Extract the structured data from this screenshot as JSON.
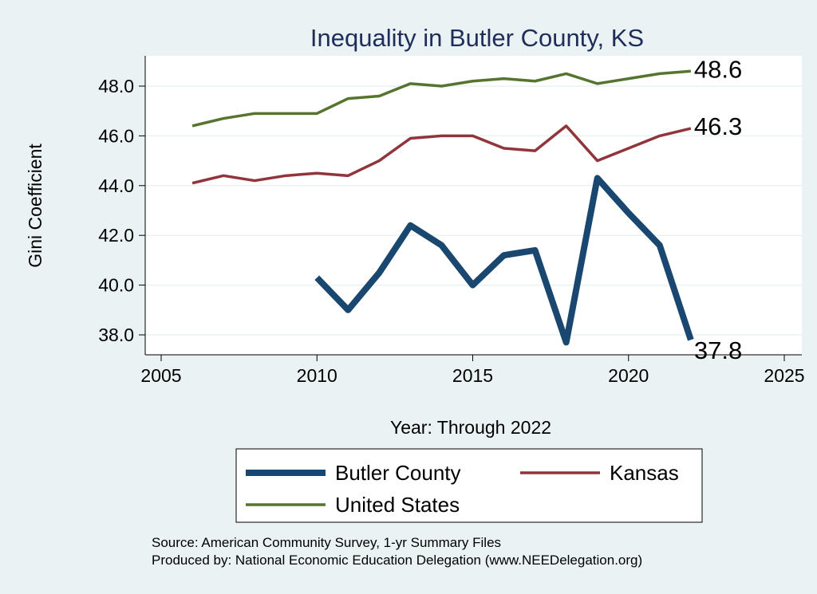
{
  "chart_data": {
    "type": "line",
    "title": "Inequality in Butler County, KS",
    "xlabel": "Year: Through 2022",
    "ylabel": "Gini Coefficient",
    "xlim": [
      2005,
      2025
    ],
    "ylim": [
      37.8,
      48.9
    ],
    "xticks": [
      2005,
      2010,
      2015,
      2020,
      2025
    ],
    "yticks": [
      "38.0",
      "40.0",
      "42.0",
      "44.0",
      "46.0",
      "48.0"
    ],
    "grid": true,
    "legend_position": "bottom",
    "series": [
      {
        "name": "Butler County",
        "color": "#1a476f",
        "x": [
          2010,
          2011,
          2012,
          2013,
          2014,
          2015,
          2016,
          2017,
          2018,
          2019,
          2020,
          2021,
          2022
        ],
        "values": [
          40.3,
          39.0,
          40.5,
          42.4,
          41.6,
          40.0,
          41.2,
          41.4,
          37.7,
          44.3,
          42.9,
          41.6,
          37.8
        ],
        "end_label": "37.8"
      },
      {
        "name": "Kansas",
        "color": "#90353b",
        "x": [
          2006,
          2007,
          2008,
          2009,
          2010,
          2011,
          2012,
          2013,
          2014,
          2015,
          2016,
          2017,
          2018,
          2019,
          2020,
          2021,
          2022
        ],
        "values": [
          44.1,
          44.4,
          44.2,
          44.4,
          44.5,
          44.4,
          45.0,
          45.9,
          46.0,
          46.0,
          45.5,
          45.4,
          46.4,
          45.0,
          45.5,
          46.0,
          46.3
        ],
        "end_label": "46.3"
      },
      {
        "name": "United States",
        "color": "#55752f",
        "x": [
          2006,
          2007,
          2008,
          2009,
          2010,
          2011,
          2012,
          2013,
          2014,
          2015,
          2016,
          2017,
          2018,
          2019,
          2020,
          2021,
          2022
        ],
        "values": [
          46.4,
          46.7,
          46.9,
          46.9,
          46.9,
          47.5,
          47.6,
          48.1,
          48.0,
          48.2,
          48.3,
          48.2,
          48.5,
          48.1,
          48.3,
          48.5,
          48.6
        ],
        "end_label": "48.6"
      }
    ],
    "notes": [
      "Source: American Community Survey, 1-yr Summary Files",
      "Produced by: National Economic Education Delegation (www.NEEDelegation.org)"
    ]
  }
}
